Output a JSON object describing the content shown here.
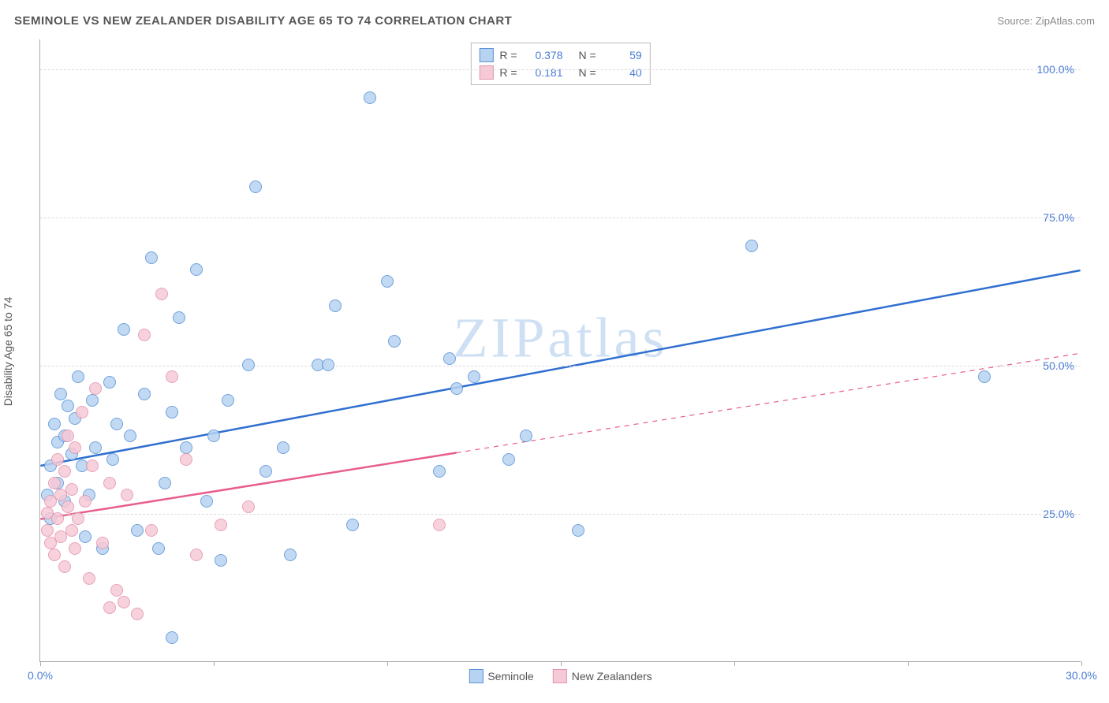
{
  "header": {
    "title": "SEMINOLE VS NEW ZEALANDER DISABILITY AGE 65 TO 74 CORRELATION CHART",
    "source": "Source: ZipAtlas.com"
  },
  "chart": {
    "type": "scatter",
    "ylabel": "Disability Age 65 to 74",
    "watermark": "ZIPatlas",
    "background_color": "#ffffff",
    "grid_color": "#dddddd",
    "axis_color": "#aaaaaa",
    "tick_label_color": "#4a7cd4",
    "xlim": [
      0,
      30
    ],
    "ylim": [
      0,
      105
    ],
    "xticks": [
      0,
      5,
      10,
      15,
      20,
      25,
      30
    ],
    "xtick_labels": {
      "0": "0.0%",
      "30": "30.0%"
    },
    "yticks": [
      25,
      50,
      75,
      100
    ],
    "ytick_labels": {
      "25": "25.0%",
      "50": "50.0%",
      "75": "75.0%",
      "100": "100.0%"
    },
    "marker_radius": 8,
    "marker_stroke_width": 1.2,
    "trendline_width": 2.5,
    "stats": [
      {
        "series": "seminole",
        "R_label": "R =",
        "R": "0.378",
        "N_label": "N =",
        "N": "59"
      },
      {
        "series": "newzealanders",
        "R_label": "R =",
        "R": "0.181",
        "N_label": "N =",
        "N": "40"
      }
    ],
    "legend": [
      {
        "key": "seminole",
        "label": "Seminole"
      },
      {
        "key": "newzealanders",
        "label": "New Zealanders"
      }
    ],
    "series": {
      "seminole": {
        "marker_fill": "#b7d3f2",
        "marker_stroke": "#5a93d6",
        "line_color": "#2f6fd0",
        "trendline": {
          "x1": 0,
          "y1": 33,
          "x2": 30,
          "y2": 66
        },
        "trendline_dash_from_x": null,
        "points": [
          [
            0.2,
            28
          ],
          [
            0.3,
            33
          ],
          [
            0.3,
            24
          ],
          [
            0.4,
            40
          ],
          [
            0.5,
            37
          ],
          [
            0.5,
            30
          ],
          [
            0.6,
            45
          ],
          [
            0.7,
            27
          ],
          [
            0.7,
            38
          ],
          [
            0.8,
            43
          ],
          [
            0.9,
            35
          ],
          [
            1.0,
            41
          ],
          [
            1.1,
            48
          ],
          [
            1.2,
            33
          ],
          [
            1.3,
            21
          ],
          [
            1.4,
            28
          ],
          [
            1.5,
            44
          ],
          [
            1.6,
            36
          ],
          [
            1.8,
            19
          ],
          [
            2.0,
            47
          ],
          [
            2.1,
            34
          ],
          [
            2.2,
            40
          ],
          [
            2.4,
            56
          ],
          [
            2.6,
            38
          ],
          [
            2.8,
            22
          ],
          [
            3.0,
            45
          ],
          [
            3.2,
            68
          ],
          [
            3.4,
            19
          ],
          [
            3.6,
            30
          ],
          [
            3.8,
            42
          ],
          [
            4.0,
            58
          ],
          [
            4.2,
            36
          ],
          [
            4.5,
            66
          ],
          [
            4.8,
            27
          ],
          [
            5.0,
            38
          ],
          [
            5.2,
            17
          ],
          [
            5.4,
            44
          ],
          [
            6.0,
            50
          ],
          [
            6.2,
            80
          ],
          [
            6.5,
            32
          ],
          [
            7.0,
            36
          ],
          [
            7.2,
            18
          ],
          [
            8.0,
            50
          ],
          [
            8.3,
            50
          ],
          [
            8.5,
            60
          ],
          [
            9.0,
            23
          ],
          [
            9.5,
            95
          ],
          [
            10.0,
            64
          ],
          [
            10.2,
            54
          ],
          [
            11.5,
            32
          ],
          [
            11.8,
            51
          ],
          [
            12.0,
            46
          ],
          [
            12.5,
            48
          ],
          [
            13.5,
            34
          ],
          [
            14.0,
            38
          ],
          [
            15.5,
            22
          ],
          [
            20.5,
            70
          ],
          [
            27.2,
            48
          ],
          [
            3.8,
            4
          ]
        ]
      },
      "newzealanders": {
        "marker_fill": "#f6c9d6",
        "marker_stroke": "#e394ad",
        "line_color": "#e85d8a",
        "trendline": {
          "x1": 0,
          "y1": 24,
          "x2": 30,
          "y2": 52
        },
        "trendline_dash_from_x": 12,
        "points": [
          [
            0.2,
            22
          ],
          [
            0.2,
            25
          ],
          [
            0.3,
            20
          ],
          [
            0.3,
            27
          ],
          [
            0.4,
            18
          ],
          [
            0.4,
            30
          ],
          [
            0.5,
            24
          ],
          [
            0.5,
            34
          ],
          [
            0.6,
            21
          ],
          [
            0.6,
            28
          ],
          [
            0.7,
            16
          ],
          [
            0.7,
            32
          ],
          [
            0.8,
            26
          ],
          [
            0.8,
            38
          ],
          [
            0.9,
            22
          ],
          [
            0.9,
            29
          ],
          [
            1.0,
            19
          ],
          [
            1.0,
            36
          ],
          [
            1.1,
            24
          ],
          [
            1.2,
            42
          ],
          [
            1.3,
            27
          ],
          [
            1.4,
            14
          ],
          [
            1.5,
            33
          ],
          [
            1.6,
            46
          ],
          [
            1.8,
            20
          ],
          [
            2.0,
            30
          ],
          [
            2.2,
            12
          ],
          [
            2.5,
            28
          ],
          [
            2.0,
            9
          ],
          [
            2.8,
            8
          ],
          [
            3.0,
            55
          ],
          [
            3.2,
            22
          ],
          [
            3.5,
            62
          ],
          [
            3.8,
            48
          ],
          [
            4.2,
            34
          ],
          [
            4.5,
            18
          ],
          [
            5.2,
            23
          ],
          [
            6.0,
            26
          ],
          [
            11.5,
            23
          ],
          [
            2.4,
            10
          ]
        ]
      }
    }
  }
}
